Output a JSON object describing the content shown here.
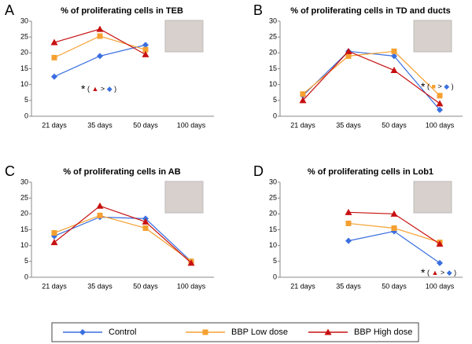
{
  "chart_data": [
    {
      "type": "line",
      "panel_label": "A",
      "title": "% of proliferating cells in TEB",
      "categories": [
        "21 days",
        "35 days",
        "50 days",
        "100 days"
      ],
      "ylim": [
        0,
        30
      ],
      "yticks": [
        0,
        5,
        10,
        15,
        20,
        25,
        30
      ],
      "series": [
        {
          "name": "Control",
          "color": "#3a6fe0",
          "marker": "diamond",
          "values": [
            12.5,
            19,
            22.5,
            null
          ]
        },
        {
          "name": "BBP Low dose",
          "color": "#f5a030",
          "marker": "square",
          "values": [
            18.5,
            25.3,
            21,
            null
          ]
        },
        {
          "name": "BBP High dose",
          "color": "#c81010",
          "marker": "triangle",
          "values": [
            23.3,
            27.5,
            19.5,
            null
          ]
        }
      ],
      "annotation": [
        {
          "text": "*",
          "color": "#000000"
        },
        {
          "text": "(",
          "color": "#000000"
        },
        {
          "text": "▲",
          "color": "#c81010"
        },
        {
          "text": ">",
          "color": "#000000"
        },
        {
          "text": "◆",
          "color": "#3a6fe0"
        },
        {
          "text": ")",
          "color": "#000000"
        }
      ],
      "annotation_at": 1
    },
    {
      "type": "line",
      "panel_label": "B",
      "title": "% of proliferating cells in TD and ducts",
      "categories": [
        "21 days",
        "35 days",
        "50 days",
        "100 days"
      ],
      "ylim": [
        0,
        30
      ],
      "yticks": [
        0,
        5,
        10,
        15,
        20,
        25,
        30
      ],
      "series": [
        {
          "name": "Control",
          "color": "#3a6fe0",
          "marker": "diamond",
          "values": [
            6.5,
            20.5,
            19,
            2
          ]
        },
        {
          "name": "BBP Low dose",
          "color": "#f5a030",
          "marker": "square",
          "values": [
            7,
            19,
            20.5,
            6.5
          ]
        },
        {
          "name": "BBP High dose",
          "color": "#c81010",
          "marker": "triangle",
          "values": [
            5,
            20.5,
            14.5,
            4
          ]
        }
      ],
      "annotation": [
        {
          "text": "*",
          "color": "#000000"
        },
        {
          "text": "(",
          "color": "#000000"
        },
        {
          "text": "■",
          "color": "#f5a030"
        },
        {
          "text": ">",
          "color": "#000000"
        },
        {
          "text": "◆",
          "color": "#3a6fe0"
        },
        {
          "text": ")",
          "color": "#000000"
        }
      ],
      "annotation_at": 3
    },
    {
      "type": "line",
      "panel_label": "C",
      "title": "% of proliferating cells in AB",
      "categories": [
        "21 days",
        "35 days",
        "50 days",
        "100 days"
      ],
      "ylim": [
        0,
        30
      ],
      "yticks": [
        0,
        5,
        10,
        15,
        20,
        25,
        30
      ],
      "series": [
        {
          "name": "Control",
          "color": "#3a6fe0",
          "marker": "diamond",
          "values": [
            13,
            19,
            18.5,
            5
          ]
        },
        {
          "name": "BBP Low dose",
          "color": "#f5a030",
          "marker": "square",
          "values": [
            14,
            19.5,
            15.5,
            5
          ]
        },
        {
          "name": "BBP High dose",
          "color": "#c81010",
          "marker": "triangle",
          "values": [
            11,
            22.5,
            17.5,
            4.5
          ]
        }
      ]
    },
    {
      "type": "line",
      "panel_label": "D",
      "title": "% of proliferating cells in Lob1",
      "categories": [
        "21 days",
        "35 days",
        "50 days",
        "100 days"
      ],
      "ylim": [
        0,
        30
      ],
      "yticks": [
        0,
        5,
        10,
        15,
        20,
        25,
        30
      ],
      "series": [
        {
          "name": "Control",
          "color": "#3a6fe0",
          "marker": "diamond",
          "values": [
            null,
            11.5,
            14.5,
            4.5
          ]
        },
        {
          "name": "BBP Low dose",
          "color": "#f5a030",
          "marker": "square",
          "values": [
            null,
            17,
            15.5,
            11
          ]
        },
        {
          "name": "BBP High dose",
          "color": "#c81010",
          "marker": "triangle",
          "values": [
            null,
            20.5,
            20,
            10.5
          ]
        }
      ],
      "annotation": [
        {
          "text": "*",
          "color": "#000000"
        },
        {
          "text": "(",
          "color": "#000000"
        },
        {
          "text": "▲",
          "color": "#c81010"
        },
        {
          "text": ">",
          "color": "#000000"
        },
        {
          "text": "◆",
          "color": "#3a6fe0"
        },
        {
          "text": ")",
          "color": "#000000"
        }
      ],
      "annotation_at": 3
    }
  ]
}
